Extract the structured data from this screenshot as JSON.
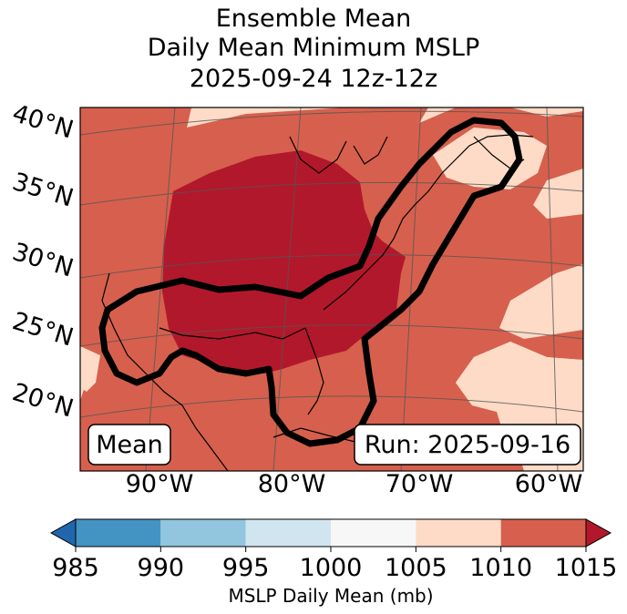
{
  "title": {
    "line1": "Ensemble Mean",
    "line2": "Daily Mean Minimum MSLP",
    "line3": "2025-09-24 12z-12z"
  },
  "map": {
    "lat_labels": [
      "40°N",
      "35°N",
      "30°N",
      "25°N",
      "20°N"
    ],
    "lon_labels": [
      "90°W",
      "80°W",
      "70°W",
      "60°W"
    ],
    "left_box": "Mean",
    "right_box": "Run: 2025-09-16"
  },
  "colorbar": {
    "ticks": [
      "985",
      "990",
      "995",
      "1000",
      "1005",
      "1010",
      "1015"
    ],
    "colors": [
      "#2166ac",
      "#4393c3",
      "#92c5de",
      "#d1e5f0",
      "#f7f7f7",
      "#fddbc7",
      "#d6604d",
      "#b2182b"
    ],
    "label": "MSLP Daily Mean (mb)"
  },
  "legend_colors": {
    "low": "#d6604d",
    "mid": "#fddbc7",
    "high": "#b2182b",
    "contour": "#000000"
  }
}
